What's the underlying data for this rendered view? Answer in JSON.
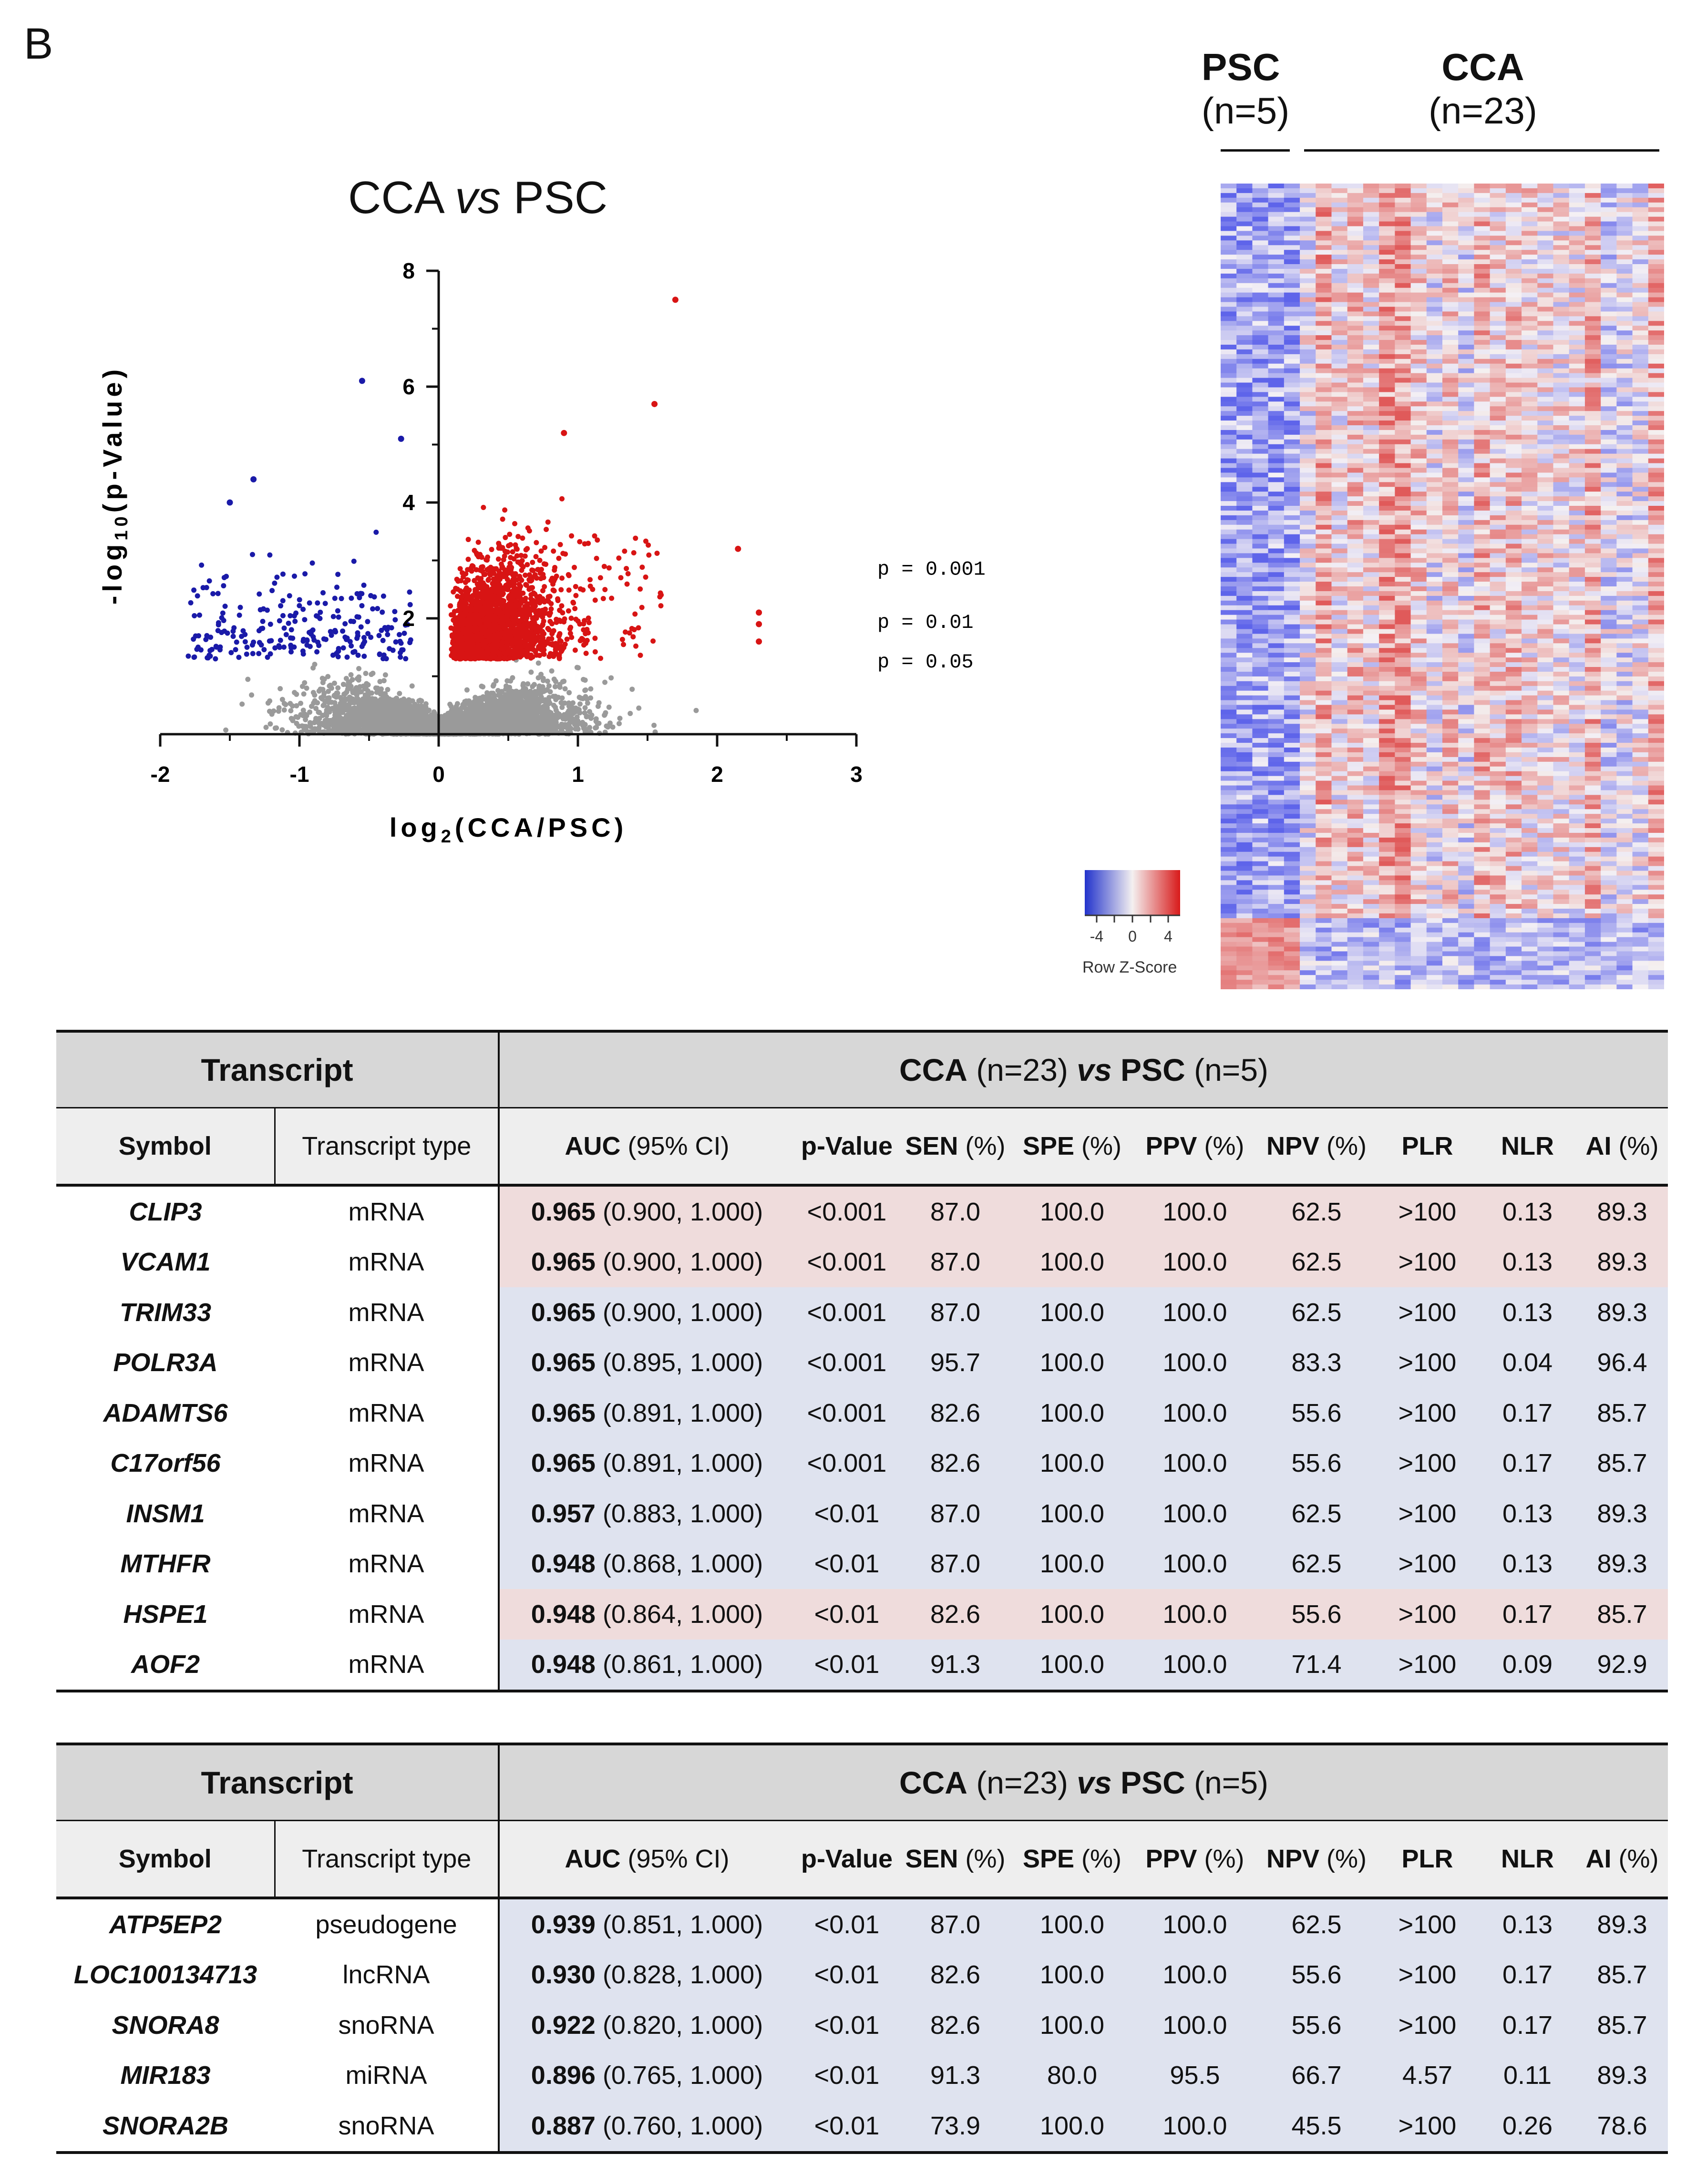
{
  "panel_label": "B",
  "volcano": {
    "title_parts": [
      "CCA ",
      "vs",
      " PSC"
    ],
    "xlabel": "log",
    "xlabel_sub": "2",
    "xlabel_rest": "(CCA/PSC)",
    "ylabel": "-log",
    "ylabel_sub": "10",
    "ylabel_rest": "(p-Value)",
    "x_ticks": [
      "-2",
      "-1",
      "0",
      "1",
      "2",
      "3"
    ],
    "y_ticks": [
      "8",
      "6",
      "4",
      "2"
    ],
    "thresholds": [
      "p = 0.001",
      "p = 0.01",
      "p = 0.05"
    ],
    "colors": {
      "down": "#1a1aa8",
      "up": "#d81414",
      "ns": "#9a9a9a"
    }
  },
  "chart_data": {
    "type": "scatter",
    "title": "CCA vs PSC",
    "xlabel": "log2(CCA/PSC)",
    "ylabel": "-log10(p-Value)",
    "xlim": [
      -2,
      3
    ],
    "ylim": [
      0,
      8
    ],
    "threshold_lines": [
      {
        "label": "p = 0.001",
        "y": 3
      },
      {
        "label": "p = 0.01",
        "y": 2
      },
      {
        "label": "p = 0.05",
        "y": 1.3
      }
    ],
    "highlighted_points": [
      {
        "x": 1.7,
        "y": 7.5,
        "group": "up"
      },
      {
        "x": 1.55,
        "y": 5.7,
        "group": "up"
      },
      {
        "x": 0.9,
        "y": 5.2,
        "group": "up"
      },
      {
        "x": 2.15,
        "y": 3.2,
        "group": "up"
      },
      {
        "x": 2.3,
        "y": 2.1,
        "group": "up"
      },
      {
        "x": 2.3,
        "y": 1.9,
        "group": "up"
      },
      {
        "x": 2.3,
        "y": 1.6,
        "group": "up"
      },
      {
        "x": -0.55,
        "y": 6.1,
        "group": "down"
      },
      {
        "x": -0.27,
        "y": 5.1,
        "group": "down"
      },
      {
        "x": -1.33,
        "y": 4.4,
        "group": "down"
      },
      {
        "x": -1.5,
        "y": 4.0,
        "group": "down"
      }
    ]
  },
  "heatmap": {
    "groups": [
      {
        "name": "PSC",
        "n": "(n=5)"
      },
      {
        "name": "CCA",
        "n": "(n=23)"
      }
    ],
    "key_ticks": [
      "-4",
      "0",
      "4"
    ],
    "key_label": "Row Z-Score"
  },
  "tables": [
    {
      "group_header": "Transcript",
      "comparison": {
        "a": "CCA",
        "a_n": " (n=23) ",
        "vs": "vs",
        "b": " PSC",
        "b_n": " (n=5)"
      },
      "columns": [
        {
          "bold": "Symbol",
          "rest": ""
        },
        {
          "bold": "",
          "rest": "Transcript type"
        },
        {
          "bold": "AUC",
          "rest": " (95% CI)"
        },
        {
          "bold": "p-Value",
          "rest": ""
        },
        {
          "bold": "SEN",
          "rest": " (%)"
        },
        {
          "bold": "SPE",
          "rest": " (%)"
        },
        {
          "bold": "PPV",
          "rest": " (%)"
        },
        {
          "bold": "NPV",
          "rest": " (%)"
        },
        {
          "bold": "PLR",
          "rest": ""
        },
        {
          "bold": "NLR",
          "rest": ""
        },
        {
          "bold": "AI",
          "rest": " (%)"
        }
      ],
      "rows": [
        {
          "symbol": "CLIP3",
          "type": "mRNA",
          "auc": "0.965",
          "ci": " (0.900, 1.000)",
          "p": "<0.001",
          "sen": "87.0",
          "spe": "100.0",
          "ppv": "100.0",
          "npv": "62.5",
          "plr": ">100",
          "nlr": "0.13",
          "ai": "89.3",
          "tint": "pink"
        },
        {
          "symbol": "VCAM1",
          "type": "mRNA",
          "auc": "0.965",
          "ci": " (0.900, 1.000)",
          "p": "<0.001",
          "sen": "87.0",
          "spe": "100.0",
          "ppv": "100.0",
          "npv": "62.5",
          "plr": ">100",
          "nlr": "0.13",
          "ai": "89.3",
          "tint": "pink"
        },
        {
          "symbol": "TRIM33",
          "type": "mRNA",
          "auc": "0.965",
          "ci": " (0.900, 1.000)",
          "p": "<0.001",
          "sen": "87.0",
          "spe": "100.0",
          "ppv": "100.0",
          "npv": "62.5",
          "plr": ">100",
          "nlr": "0.13",
          "ai": "89.3",
          "tint": "blue"
        },
        {
          "symbol": "POLR3A",
          "type": "mRNA",
          "auc": "0.965",
          "ci": " (0.895, 1.000)",
          "p": "<0.001",
          "sen": "95.7",
          "spe": "100.0",
          "ppv": "100.0",
          "npv": "83.3",
          "plr": ">100",
          "nlr": "0.04",
          "ai": "96.4",
          "tint": "blue"
        },
        {
          "symbol": "ADAMTS6",
          "type": "mRNA",
          "auc": "0.965",
          "ci": " (0.891, 1.000)",
          "p": "<0.001",
          "sen": "82.6",
          "spe": "100.0",
          "ppv": "100.0",
          "npv": "55.6",
          "plr": ">100",
          "nlr": "0.17",
          "ai": "85.7",
          "tint": "blue"
        },
        {
          "symbol": "C17orf56",
          "type": "mRNA",
          "auc": "0.965",
          "ci": " (0.891, 1.000)",
          "p": "<0.001",
          "sen": "82.6",
          "spe": "100.0",
          "ppv": "100.0",
          "npv": "55.6",
          "plr": ">100",
          "nlr": "0.17",
          "ai": "85.7",
          "tint": "blue"
        },
        {
          "symbol": "INSM1",
          "type": "mRNA",
          "auc": "0.957",
          "ci": " (0.883, 1.000)",
          "p": "<0.01",
          "sen": "87.0",
          "spe": "100.0",
          "ppv": "100.0",
          "npv": "62.5",
          "plr": ">100",
          "nlr": "0.13",
          "ai": "89.3",
          "tint": "blue"
        },
        {
          "symbol": "MTHFR",
          "type": "mRNA",
          "auc": "0.948",
          "ci": " (0.868, 1.000)",
          "p": "<0.01",
          "sen": "87.0",
          "spe": "100.0",
          "ppv": "100.0",
          "npv": "62.5",
          "plr": ">100",
          "nlr": "0.13",
          "ai": "89.3",
          "tint": "blue"
        },
        {
          "symbol": "HSPE1",
          "type": "mRNA",
          "auc": "0.948",
          "ci": " (0.864, 1.000)",
          "p": "<0.01",
          "sen": "82.6",
          "spe": "100.0",
          "ppv": "100.0",
          "npv": "55.6",
          "plr": ">100",
          "nlr": "0.17",
          "ai": "85.7",
          "tint": "pink"
        },
        {
          "symbol": "AOF2",
          "type": "mRNA",
          "auc": "0.948",
          "ci": " (0.861, 1.000)",
          "p": "<0.01",
          "sen": "91.3",
          "spe": "100.0",
          "ppv": "100.0",
          "npv": "71.4",
          "plr": ">100",
          "nlr": "0.09",
          "ai": "92.9",
          "tint": "blue"
        }
      ]
    },
    {
      "group_header": "Transcript",
      "comparison": {
        "a": "CCA",
        "a_n": " (n=23) ",
        "vs": "vs",
        "b": " PSC",
        "b_n": " (n=5)"
      },
      "columns": [
        {
          "bold": "Symbol",
          "rest": ""
        },
        {
          "bold": "",
          "rest": "Transcript type"
        },
        {
          "bold": "AUC",
          "rest": " (95% CI)"
        },
        {
          "bold": "p-Value",
          "rest": ""
        },
        {
          "bold": "SEN",
          "rest": " (%)"
        },
        {
          "bold": "SPE",
          "rest": " (%)"
        },
        {
          "bold": "PPV",
          "rest": " (%)"
        },
        {
          "bold": "NPV",
          "rest": " (%)"
        },
        {
          "bold": "PLR",
          "rest": ""
        },
        {
          "bold": "NLR",
          "rest": ""
        },
        {
          "bold": "AI",
          "rest": " (%)"
        }
      ],
      "rows": [
        {
          "symbol": "ATP5EP2",
          "type": "pseudogene",
          "auc": "0.939",
          "ci": " (0.851, 1.000)",
          "p": "<0.01",
          "sen": "87.0",
          "spe": "100.0",
          "ppv": "100.0",
          "npv": "62.5",
          "plr": ">100",
          "nlr": "0.13",
          "ai": "89.3",
          "tint": "blue"
        },
        {
          "symbol": "LOC100134713",
          "type": "lncRNA",
          "auc": "0.930",
          "ci": " (0.828, 1.000)",
          "p": "<0.01",
          "sen": "82.6",
          "spe": "100.0",
          "ppv": "100.0",
          "npv": "55.6",
          "plr": ">100",
          "nlr": "0.17",
          "ai": "85.7",
          "tint": "blue"
        },
        {
          "symbol": "SNORA8",
          "type": "snoRNA",
          "auc": "0.922",
          "ci": " (0.820, 1.000)",
          "p": "<0.01",
          "sen": "82.6",
          "spe": "100.0",
          "ppv": "100.0",
          "npv": "55.6",
          "plr": ">100",
          "nlr": "0.17",
          "ai": "85.7",
          "tint": "blue"
        },
        {
          "symbol": "MIR183",
          "type": "miRNA",
          "auc": "0.896",
          "ci": " (0.765, 1.000)",
          "p": "<0.01",
          "sen": "91.3",
          "spe": "80.0",
          "ppv": "95.5",
          "npv": "66.7",
          "plr": "4.57",
          "nlr": "0.11",
          "ai": "89.3",
          "tint": "blue"
        },
        {
          "symbol": "SNORA2B",
          "type": "snoRNA",
          "auc": "0.887",
          "ci": " (0.760, 1.000)",
          "p": "<0.01",
          "sen": "73.9",
          "spe": "100.0",
          "ppv": "100.0",
          "npv": "45.5",
          "plr": ">100",
          "nlr": "0.26",
          "ai": "78.6",
          "tint": "blue"
        }
      ]
    }
  ]
}
